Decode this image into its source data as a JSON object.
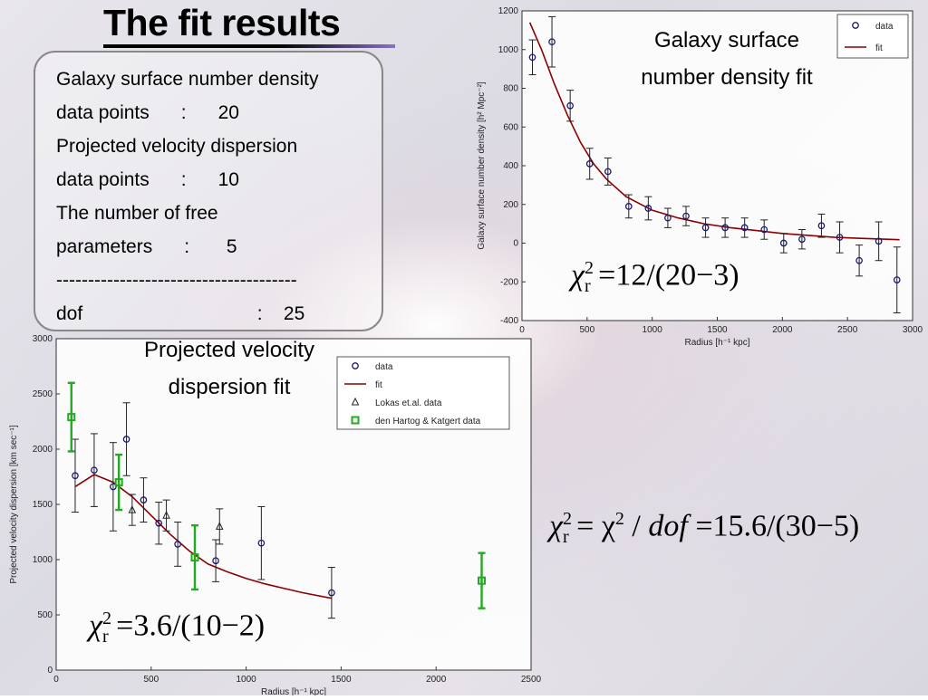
{
  "title": "The fit results",
  "info_lines": [
    "Galaxy surface number density",
    "data points      :      20",
    "Projected velocity dispersion",
    "data points      :      10",
    "The number of free",
    "parameters      :       5",
    "--------------------------------------",
    "dof                                 :    25"
  ],
  "caption_density": [
    "Galaxy surface",
    "number density  fit"
  ],
  "caption_velocity": [
    "Projected velocity",
    "dispersion fit"
  ],
  "formula_density": {
    "lhs": "χ",
    "sup": "2",
    "sub": "r",
    "rhs": "=12/(20−3)"
  },
  "formula_total": {
    "lhs": "χ",
    "sup": "2",
    "sub": "r",
    "mid": "= χ",
    "mid_sup": "2",
    "rhs": "/ ",
    "dof": "dof",
    "tail": "=15.6/(30−5)"
  },
  "formula_velocity": {
    "lhs": "χ",
    "sup": "2",
    "sub": "r",
    "rhs": "=3.6/(10−2)"
  },
  "colors": {
    "fit": "#8b0000",
    "data": "#1a1a6e",
    "green": "#22aa22"
  },
  "chart_data": [
    {
      "type": "scatter",
      "xlabel": "Radius [h⁻¹ kpc]",
      "ylabel": "Galaxy surface number density [h² Mpc⁻²]",
      "xlim": [
        0,
        3000
      ],
      "ylim": [
        -400,
        1200
      ],
      "xticks": [
        0,
        500,
        1000,
        1500,
        2000,
        2500,
        3000
      ],
      "yticks": [
        -400,
        -200,
        0,
        200,
        400,
        600,
        800,
        1000,
        1200
      ],
      "legend": [
        "data",
        "fit"
      ],
      "legend_position": "top-right",
      "series": [
        {
          "name": "data",
          "x": [
            80,
            230,
            370,
            520,
            660,
            820,
            970,
            1120,
            1260,
            1410,
            1560,
            1710,
            1860,
            2010,
            2150,
            2300,
            2440,
            2590,
            2740,
            2880
          ],
          "y": [
            960,
            1040,
            710,
            410,
            370,
            190,
            180,
            130,
            140,
            80,
            80,
            80,
            70,
            0,
            20,
            90,
            30,
            -90,
            10,
            -190
          ],
          "err": [
            90,
            130,
            80,
            80,
            70,
            60,
            60,
            50,
            50,
            50,
            50,
            50,
            50,
            50,
            50,
            60,
            80,
            80,
            100,
            170
          ]
        },
        {
          "name": "fit",
          "x": [
            60,
            150,
            250,
            350,
            450,
            550,
            650,
            800,
            1000,
            1200,
            1400,
            1600,
            1800,
            2000,
            2200,
            2400,
            2600,
            2800,
            2900
          ],
          "y": [
            1140,
            1000,
            820,
            660,
            520,
            410,
            330,
            240,
            170,
            130,
            100,
            80,
            65,
            50,
            40,
            30,
            25,
            20,
            18
          ]
        }
      ]
    },
    {
      "type": "scatter",
      "xlabel": "Radius [h⁻¹ kpc]",
      "ylabel": "Projected velocity dispersion [km sec⁻¹]",
      "xlim": [
        0,
        2500
      ],
      "ylim": [
        0,
        3000
      ],
      "xticks": [
        0,
        500,
        1000,
        1500,
        2000,
        2500
      ],
      "yticks": [
        0,
        500,
        1000,
        1500,
        2000,
        2500,
        3000
      ],
      "legend": [
        "data",
        "fit",
        "Lokas et.al. data",
        "den Hartog & Katgert data"
      ],
      "legend_position": "top-right",
      "series": [
        {
          "name": "data",
          "x": [
            100,
            200,
            300,
            370,
            460,
            540,
            640,
            840,
            1080,
            1450
          ],
          "y": [
            1760,
            1810,
            1660,
            2090,
            1540,
            1330,
            1140,
            990,
            1150,
            700
          ],
          "err": [
            330,
            330,
            400,
            330,
            200,
            190,
            200,
            190,
            330,
            230
          ]
        },
        {
          "name": "fit",
          "x": [
            100,
            200,
            300,
            400,
            500,
            600,
            700,
            800,
            900,
            1000,
            1100,
            1200,
            1300,
            1450
          ],
          "y": [
            1660,
            1770,
            1700,
            1570,
            1400,
            1230,
            1080,
            960,
            890,
            830,
            780,
            740,
            700,
            650
          ]
        },
        {
          "name": "Lokas et.al. data",
          "x": [
            400,
            580,
            860
          ],
          "y": [
            1450,
            1400,
            1300
          ],
          "err": [
            140,
            140,
            160
          ]
        },
        {
          "name": "den Hartog & Katgert data",
          "x": [
            80,
            330,
            730,
            2240
          ],
          "y": [
            2290,
            1700,
            1020,
            810
          ],
          "err": [
            310,
            250,
            290,
            250
          ]
        }
      ]
    }
  ]
}
